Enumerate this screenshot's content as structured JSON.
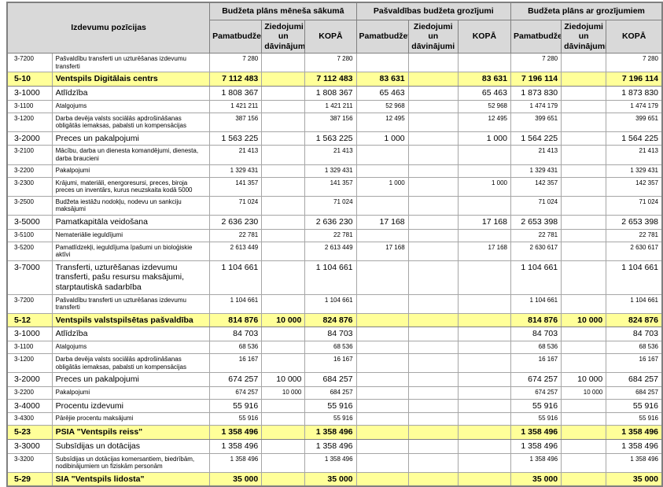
{
  "colors": {
    "highlight": "#ffff99",
    "header_bg": "#d9d9d9",
    "grid": "#a6a6a6",
    "grid_dark": "#808080"
  },
  "table": {
    "corner_header": "Izdevumu pozīcijas",
    "column_groups": [
      {
        "label": "Budžeta plāns mēneša sākumā",
        "columns": [
          "Pamatbudžets",
          "Ziedojumi un dāvinājumi",
          "KOPĀ"
        ]
      },
      {
        "label": "Pašvaldības budžeta grozījumi",
        "columns": [
          "Pamatbudžets",
          "Ziedojumi un dāvinājumi",
          "KOPĀ"
        ]
      },
      {
        "label": "Budžeta plāns ar grozījumiem",
        "columns": [
          "Pamatbudžets",
          "Ziedojumi un dāvinājumi",
          "KOPĀ"
        ]
      }
    ],
    "rows": [
      {
        "code": "3-7200",
        "name": "Pašvaldību transferti un uzturēšanas izdevumu transferti",
        "style": "sub",
        "values": [
          "7 280",
          "",
          "7 280",
          "",
          "",
          "",
          "7 280",
          "",
          "7 280"
        ]
      },
      {
        "code": "5-10",
        "name": "Ventspils Digitālais centrs",
        "style": "section",
        "values": [
          "7 112 483",
          "",
          "7 112 483",
          "83 631",
          "",
          "83 631",
          "7 196 114",
          "",
          "7 196 114"
        ]
      },
      {
        "code": "3-1000",
        "name": "Atlīdzība",
        "style": "main",
        "values": [
          "1 808 367",
          "",
          "1 808 367",
          "65 463",
          "",
          "65 463",
          "1 873 830",
          "",
          "1 873 830"
        ]
      },
      {
        "code": "3-1100",
        "name": "Atalgojums",
        "style": "sub",
        "values": [
          "1 421 211",
          "",
          "1 421 211",
          "52 968",
          "",
          "52 968",
          "1 474 179",
          "",
          "1 474 179"
        ]
      },
      {
        "code": "3-1200",
        "name": "Darba devēja valsts sociālās apdrošināšanas obligātās iemaksas, pabalsti un kompensācijas",
        "style": "sub",
        "values": [
          "387 156",
          "",
          "387 156",
          "12 495",
          "",
          "12 495",
          "399 651",
          "",
          "399 651"
        ]
      },
      {
        "code": "3-2000",
        "name": "Preces un pakalpojumi",
        "style": "main",
        "values": [
          "1 563 225",
          "",
          "1 563 225",
          "1 000",
          "",
          "1 000",
          "1 564 225",
          "",
          "1 564 225"
        ]
      },
      {
        "code": "3-2100",
        "name": "Mācību, darba un dienesta komandējumi, dienesta, darba braucieni",
        "style": "sub",
        "values": [
          "21 413",
          "",
          "21 413",
          "",
          "",
          "",
          "21 413",
          "",
          "21 413"
        ]
      },
      {
        "code": "3-2200",
        "name": "Pakalpojumi",
        "style": "sub",
        "values": [
          "1 329 431",
          "",
          "1 329 431",
          "",
          "",
          "",
          "1 329 431",
          "",
          "1 329 431"
        ]
      },
      {
        "code": "3-2300",
        "name": "Krājumi, materiāli, energoresursi, preces, biroja preces un inventārs, kurus neuzskaita kodā 5000",
        "style": "sub",
        "values": [
          "141 357",
          "",
          "141 357",
          "1 000",
          "",
          "1 000",
          "142 357",
          "",
          "142 357"
        ]
      },
      {
        "code": "3-2500",
        "name": "Budžeta iestāžu nodokļu, nodevu un sankciju maksājumi",
        "style": "sub",
        "values": [
          "71 024",
          "",
          "71 024",
          "",
          "",
          "",
          "71 024",
          "",
          "71 024"
        ]
      },
      {
        "code": "3-5000",
        "name": "Pamatkapitāla veidošana",
        "style": "main",
        "values": [
          "2 636 230",
          "",
          "2 636 230",
          "17 168",
          "",
          "17 168",
          "2 653 398",
          "",
          "2 653 398"
        ]
      },
      {
        "code": "3-5100",
        "name": "Nemateriālie ieguldījumi",
        "style": "sub",
        "values": [
          "22 781",
          "",
          "22 781",
          "",
          "",
          "",
          "22 781",
          "",
          "22 781"
        ]
      },
      {
        "code": "3-5200",
        "name": "Pamatlīdzekļi, ieguldījuma īpašumi un bioloģiskie aktīvi",
        "style": "sub",
        "values": [
          "2 613 449",
          "",
          "2 613 449",
          "17 168",
          "",
          "17 168",
          "2 630 617",
          "",
          "2 630 617"
        ]
      },
      {
        "code": "3-7000",
        "name": "Transferti, uzturēšanas izdevumu transferti, pašu resursu maksājumi, starptautiskā sadarbība",
        "style": "main",
        "values": [
          "1 104 661",
          "",
          "1 104 661",
          "",
          "",
          "",
          "1 104 661",
          "",
          "1 104 661"
        ]
      },
      {
        "code": "3-7200",
        "name": "Pašvaldību transferti un uzturēšanas izdevumu transferti",
        "style": "sub",
        "values": [
          "1 104 661",
          "",
          "1 104 661",
          "",
          "",
          "",
          "1 104 661",
          "",
          "1 104 661"
        ]
      },
      {
        "code": "5-12",
        "name": "Ventspils valstspilsētas pašvaldība",
        "style": "section",
        "values": [
          "814 876",
          "10 000",
          "824 876",
          "",
          "",
          "",
          "814 876",
          "10 000",
          "824 876"
        ]
      },
      {
        "code": "3-1000",
        "name": "Atlīdzība",
        "style": "main",
        "values": [
          "84 703",
          "",
          "84 703",
          "",
          "",
          "",
          "84 703",
          "",
          "84 703"
        ]
      },
      {
        "code": "3-1100",
        "name": "Atalgojums",
        "style": "sub",
        "values": [
          "68 536",
          "",
          "68 536",
          "",
          "",
          "",
          "68 536",
          "",
          "68 536"
        ]
      },
      {
        "code": "3-1200",
        "name": "Darba devēja valsts sociālās apdrošināšanas obligātās iemaksas, pabalsti un kompensācijas",
        "style": "sub",
        "values": [
          "16 167",
          "",
          "16 167",
          "",
          "",
          "",
          "16 167",
          "",
          "16 167"
        ]
      },
      {
        "code": "3-2000",
        "name": "Preces un pakalpojumi",
        "style": "main",
        "values": [
          "674 257",
          "10 000",
          "684 257",
          "",
          "",
          "",
          "674 257",
          "10 000",
          "684 257"
        ]
      },
      {
        "code": "3-2200",
        "name": "Pakalpojumi",
        "style": "sub",
        "values": [
          "674 257",
          "10 000",
          "684 257",
          "",
          "",
          "",
          "674 257",
          "10 000",
          "684 257"
        ]
      },
      {
        "code": "3-4000",
        "name": "Procentu izdevumi",
        "style": "main",
        "values": [
          "55 916",
          "",
          "55 916",
          "",
          "",
          "",
          "55 916",
          "",
          "55 916"
        ]
      },
      {
        "code": "3-4300",
        "name": "Pārējie procentu maksājumi",
        "style": "sub",
        "values": [
          "55 916",
          "",
          "55 916",
          "",
          "",
          "",
          "55 916",
          "",
          "55 916"
        ]
      },
      {
        "code": "5-23",
        "name": "PSIA \"Ventspils reiss\"",
        "style": "section",
        "values": [
          "1 358 496",
          "",
          "1 358 496",
          "",
          "",
          "",
          "1 358 496",
          "",
          "1 358 496"
        ]
      },
      {
        "code": "3-3000",
        "name": "Subsīdijas un dotācijas",
        "style": "main",
        "values": [
          "1 358 496",
          "",
          "1 358 496",
          "",
          "",
          "",
          "1 358 496",
          "",
          "1 358 496"
        ]
      },
      {
        "code": "3-3200",
        "name": "Subsīdijas un dotācijas komersantiem, biedrībām, nodibinājumiem un fiziskām personām",
        "style": "sub",
        "values": [
          "1 358 496",
          "",
          "1 358 496",
          "",
          "",
          "",
          "1 358 496",
          "",
          "1 358 496"
        ]
      },
      {
        "code": "5-29",
        "name": "SIA \"Ventspils lidosta\"",
        "style": "section",
        "values": [
          "35 000",
          "",
          "35 000",
          "",
          "",
          "",
          "35 000",
          "",
          "35 000"
        ]
      }
    ]
  }
}
